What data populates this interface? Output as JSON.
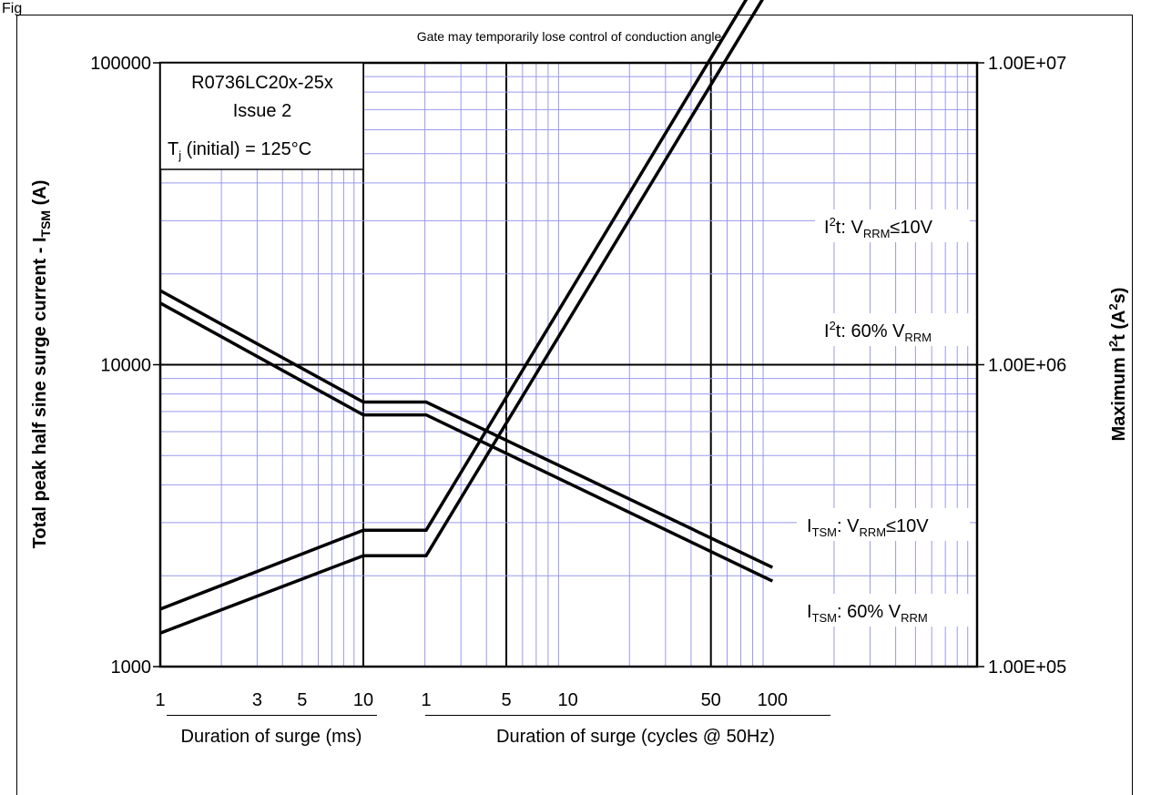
{
  "caption": "Fig",
  "chart_data": {
    "type": "line",
    "title": "Gate may temporarily lose control of conduction angle",
    "ylabel": "Total peak half sine surge current - I",
    "ylabel_sub": "TSM",
    "ylabel_unit": " (A)",
    "y2label": "Maximum I",
    "y2label_sup": "2",
    "y2label_tail": "t (A",
    "y2label_sup2": "2",
    "y2label_end": "s)",
    "ylim": [
      1000,
      100000
    ],
    "y_scale": "log",
    "yticks": [
      "1000",
      "10000",
      "100000"
    ],
    "y2lim": [
      100000,
      10000000
    ],
    "y2_scale": "log",
    "y2ticks": [
      "1.00E+05",
      "1.00E+06",
      "1.00E+07"
    ],
    "x_segments": [
      {
        "label": "Duration of surge (ms)",
        "range": [
          1,
          10
        ],
        "scale": "log",
        "ticks": [
          "1",
          "3",
          "5",
          "10"
        ]
      },
      {
        "label": "Duration of surge (cycles @ 50Hz)",
        "range": [
          1,
          1000
        ],
        "scale": "log",
        "ticks": [
          "1",
          "5",
          "10",
          "50",
          "100"
        ]
      }
    ],
    "grid": true,
    "legend_box": {
      "line1": "R0736LC20x-25x",
      "line2": "Issue 2",
      "cond_a": "T",
      "cond_sub": "j",
      "cond_b": " (initial) = 125°C"
    },
    "series": [
      {
        "name_a": "I",
        "name_sup": "2",
        "name_b": "t: V",
        "name_sub": "RRM",
        "name_c": "≤10V",
        "axis": "right",
        "ms": {
          "x": [
            1,
            10
          ],
          "y": [
            155000,
            283000
          ]
        },
        "cycles": {
          "x": [
            1,
            100
          ],
          "y": [
            283000,
            22600000
          ]
        }
      },
      {
        "name_a": "I",
        "name_sup": "2",
        "name_b": "t: 60% V",
        "name_sub": "RRM",
        "name_c": "",
        "axis": "right",
        "ms": {
          "x": [
            1,
            10
          ],
          "y": [
            129000,
            233000
          ]
        },
        "cycles": {
          "x": [
            1,
            100
          ],
          "y": [
            233000,
            18400000
          ]
        }
      },
      {
        "name_a": "I",
        "name_sup": "",
        "name_b": "",
        "name_sub": "TSM",
        "name_c": ": V",
        "name_sub2": "RRM",
        "name_d": "≤10V",
        "axis": "left",
        "ms": {
          "x": [
            1,
            10
          ],
          "y": [
            17600,
            7520
          ]
        },
        "cycles": {
          "x": [
            1,
            100
          ],
          "y": [
            7520,
            2130
          ]
        }
      },
      {
        "name_a": "I",
        "name_sup": "",
        "name_b": "",
        "name_sub": "TSM",
        "name_c": ": 60% V",
        "name_sub2": "RRM",
        "name_d": "",
        "axis": "left",
        "ms": {
          "x": [
            1,
            10
          ],
          "y": [
            16000,
            6820
          ]
        },
        "cycles": {
          "x": [
            1,
            100
          ],
          "y": [
            6820,
            1920
          ]
        }
      }
    ]
  }
}
